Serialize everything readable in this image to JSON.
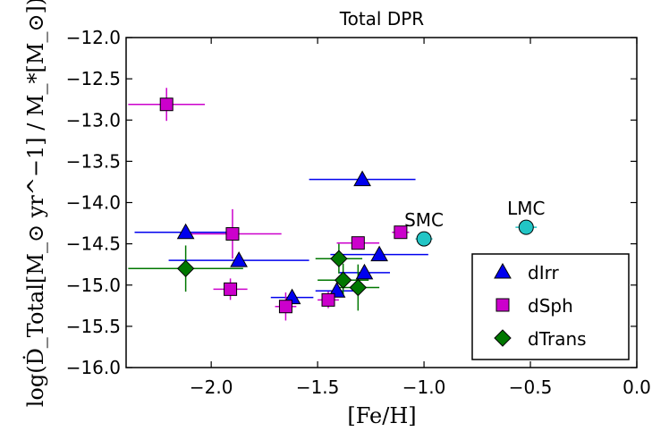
{
  "chart_data": {
    "type": "scatter",
    "title": "Total DPR",
    "xlabel": "[Fe/H]",
    "ylabel": "log(Ḋ_Total[M_⊙ yr^−1] / M_*[M_⊙])",
    "xlim": [
      -2.4,
      0.0
    ],
    "ylim": [
      -16.0,
      -12.0
    ],
    "x_ticks": [
      "−2.0",
      "−1.5",
      "−1.0",
      "−0.5",
      "0.0"
    ],
    "x_tick_values": [
      -2.0,
      -1.5,
      -1.0,
      -0.5,
      0.0
    ],
    "y_ticks": [
      "−12.0",
      "−12.5",
      "−13.0",
      "−13.5",
      "−14.0",
      "−14.5",
      "−15.0",
      "−15.5",
      "−16.0"
    ],
    "y_tick_values": [
      -12.0,
      -12.5,
      -13.0,
      -13.5,
      -14.0,
      -14.5,
      -15.0,
      -15.5,
      -16.0
    ],
    "grid": false,
    "legend_position": "bottom-right",
    "series": [
      {
        "name": "dIrr",
        "marker": "triangle",
        "color": "#0000ee",
        "points": [
          {
            "x": -2.12,
            "y": -14.36,
            "xerr": 0.24,
            "yerr": 0
          },
          {
            "x": -1.87,
            "y": -14.7,
            "xerr": 0.33,
            "yerr": 0
          },
          {
            "x": -1.62,
            "y": -15.15,
            "xerr": 0.1,
            "yerr": 0
          },
          {
            "x": -1.41,
            "y": -15.07,
            "xerr": 0.1,
            "yerr": 0
          },
          {
            "x": -1.28,
            "y": -14.85,
            "xerr": 0.12,
            "yerr": 0
          },
          {
            "x": -1.21,
            "y": -14.63,
            "xerr": 0.23,
            "yerr": 0
          },
          {
            "x": -1.29,
            "y": -13.72,
            "xerr": 0.25,
            "yerr": 0
          }
        ]
      },
      {
        "name": "dSph",
        "marker": "square",
        "color": "#cc00cc",
        "points": [
          {
            "x": -2.21,
            "y": -12.81,
            "xerr": 0.18,
            "yerr": 0.2
          },
          {
            "x": -1.9,
            "y": -14.38,
            "xerr": 0.23,
            "yerr": 0.3
          },
          {
            "x": -1.91,
            "y": -15.05,
            "xerr": 0.08,
            "yerr": 0.13
          },
          {
            "x": -1.65,
            "y": -15.26,
            "xerr": 0.05,
            "yerr": 0.17
          },
          {
            "x": -1.45,
            "y": -15.18,
            "xerr": 0.05,
            "yerr": 0.1
          },
          {
            "x": -1.31,
            "y": -14.49,
            "xerr": 0.1,
            "yerr": 0.05
          },
          {
            "x": -1.11,
            "y": -14.36,
            "xerr": 0.04,
            "yerr": 0.04
          }
        ]
      },
      {
        "name": "dTrans",
        "marker": "diamond",
        "color": "#007700",
        "points": [
          {
            "x": -2.12,
            "y": -14.8,
            "xerr": 0.27,
            "yerr": 0.28
          },
          {
            "x": -1.4,
            "y": -14.68,
            "xerr": 0.11,
            "yerr": 0.18
          },
          {
            "x": -1.38,
            "y": -14.94,
            "xerr": 0.12,
            "yerr": 0.2
          },
          {
            "x": -1.31,
            "y": -15.03,
            "xerr": 0.1,
            "yerr": 0.28
          }
        ]
      }
    ],
    "references": [
      {
        "label": "SMC",
        "x": -1.0,
        "y": -14.44,
        "xerr": 0.04,
        "color": "#22c5c5"
      },
      {
        "label": "LMC",
        "x": -0.52,
        "y": -14.3,
        "xerr": 0.05,
        "color": "#22c5c5"
      }
    ]
  }
}
